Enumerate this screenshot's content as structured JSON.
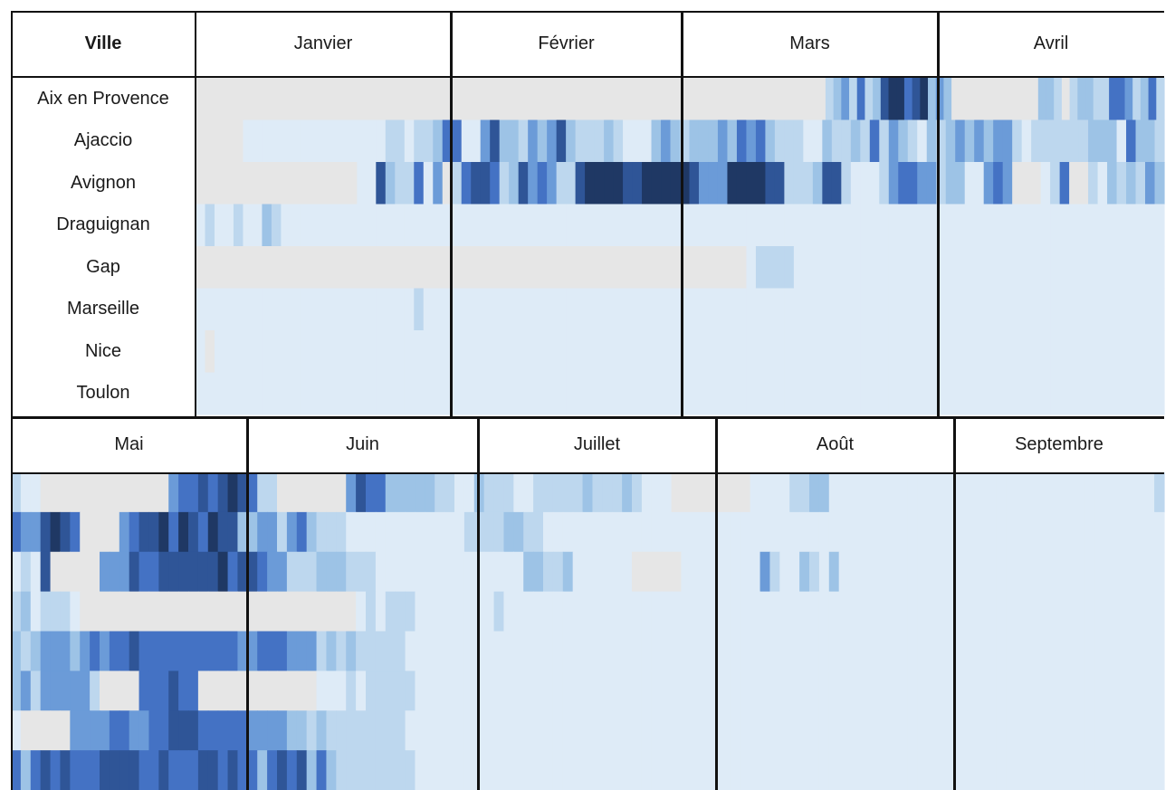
{
  "chart_data": {
    "type": "heatmap",
    "corner_label": "Ville",
    "cities": [
      "Aix en Provence",
      "Ajaccio",
      "Avignon",
      "Draguignan",
      "Gap",
      "Marseille",
      "Nice",
      "Toulon"
    ],
    "months_row1": [
      "Janvier",
      "Février",
      "Mars",
      "Avril"
    ],
    "months_row2": [
      "Mai",
      "Juin",
      "Juillet",
      "Août",
      "Septembre"
    ],
    "palette": {
      "0": "#e6e6e6",
      "1": "#deebf7",
      "2": "#bdd7ee",
      "3": "#9dc3e6",
      "4": "#6b9bd8",
      "5": "#4472c4",
      "6": "#2f5597",
      "7": "#1f3864"
    },
    "legend_note": "0 = gris (pas de donnée), 1..7 = intensité croissante du bleu",
    "row1_cells": [
      "000000000000000000000000000000000000000000000000000000000000000000000000000000002342523677567343000000000003320233225542352",
      "000001111111111111112212235511463324346322232111343233343545322211322325243213234343442122222233315332",
      "000000000000000001163225140256652364542267777667777764447777662223662111245544233114540001250021323243",
      "121121132111111111111111111111111111111111111111111111111111111111111111111111111111111111111111111111",
      "000000000000000000000000000000000000000000000000000000000012222111111111111111111111111111111111111111",
      "111111111111111111111112111111111111111111111111111111111111111111111111111111111111111111111111111111",
      "101111111111111111111111111111111111111111111111111111111111111111111111111111111111111111111111111111",
      "111111111111111111111111111111111111111111111111111111111111111111111111111111111111111111111111111111"
    ],
    "row2_cells": [
      "211000000000000045565676522000000046553333322113222112222232223211100000000111122331111111111111111111111111111111112",
      "544676500004566757657663344245322211111111111122223322111111111111111111111111111111111111111111111111111111111111111",
      "121600000444655666666756654422233322211111111111111133223111111000001111111142113213111111111111111111111111111111111",
      "231222100000000000000000000000000001212221111111121111111111111111111111111111111111111111111111111111111111111111111",
      "323444345455655555555554455544423232222211111111111111111111111111111111111111111111111111111111111111111111111111111",
      "342444442000055565500000000000011121222221111111111111111111111111111111111111111111111111111111111111111111111111111",
      "100000444455445566655555444433232222222211111111111111111111111111111111111111111111111111111111111111111111111111111",
      "535656555666655655566565535656353222222221111111111111111111111111111111111111111111111111111111111111111111111111111"
    ]
  }
}
